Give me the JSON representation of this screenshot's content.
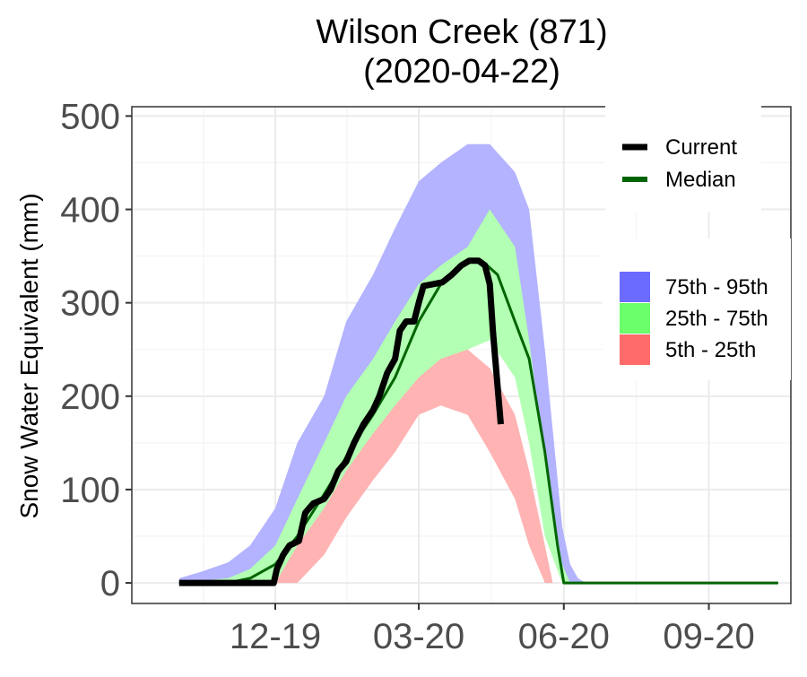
{
  "chart_data": {
    "type": "area",
    "title": "Wilson Creek (871)",
    "subtitle": "(2020-04-22)",
    "ylabel": "Snow Water Equivalent (mm)",
    "xlabel": "",
    "ylim": [
      -22,
      510
    ],
    "xlim": [
      "2019-09-01",
      "2020-10-23"
    ],
    "y_ticks": [
      0,
      100,
      200,
      300,
      400,
      500
    ],
    "x_ticks": [
      {
        "date": "2019-12-01",
        "label": "12-19"
      },
      {
        "date": "2020-03-01",
        "label": "03-20"
      },
      {
        "date": "2020-06-01",
        "label": "06-20"
      },
      {
        "date": "2020-09-01",
        "label": "09-20"
      }
    ],
    "grid": true,
    "legend_lines": [
      {
        "label": "Current",
        "color": "#000000"
      },
      {
        "label": "Median",
        "color": "#006400"
      }
    ],
    "legend_bands": [
      {
        "label": "75th - 95th",
        "color": "#6b6bff"
      },
      {
        "label": "25th - 75th",
        "color": "#6bff6b"
      },
      {
        "label": "5th - 25th",
        "color": "#ff6b6b"
      }
    ],
    "bands": [
      {
        "name": "75th - 95th",
        "color": "#b3b3ff",
        "points": [
          [
            "2019-10-01",
            0,
            5
          ],
          [
            "2019-10-15",
            0,
            12
          ],
          [
            "2019-11-01",
            0,
            22
          ],
          [
            "2019-11-15",
            0,
            40
          ],
          [
            "2019-12-01",
            5,
            80
          ],
          [
            "2019-12-15",
            20,
            150
          ],
          [
            "2020-01-01",
            60,
            200
          ],
          [
            "2020-01-15",
            120,
            280
          ],
          [
            "2020-02-01",
            160,
            330
          ],
          [
            "2020-02-15",
            200,
            380
          ],
          [
            "2020-03-01",
            260,
            430
          ],
          [
            "2020-03-15",
            300,
            450
          ],
          [
            "2020-04-01",
            330,
            470
          ],
          [
            "2020-04-15",
            370,
            470
          ],
          [
            "2020-05-01",
            300,
            440
          ],
          [
            "2020-05-10",
            200,
            400
          ],
          [
            "2020-05-20",
            100,
            250
          ],
          [
            "2020-05-31",
            10,
            60
          ],
          [
            "2020-06-05",
            0,
            20
          ],
          [
            "2020-06-10",
            0,
            5
          ],
          [
            "2020-06-15",
            0,
            0
          ]
        ]
      },
      {
        "name": "25th - 75th",
        "color": "#b3ffb3",
        "points": [
          [
            "2019-10-01",
            0,
            0
          ],
          [
            "2019-11-01",
            0,
            5
          ],
          [
            "2019-11-15",
            0,
            15
          ],
          [
            "2019-12-01",
            0,
            40
          ],
          [
            "2019-12-15",
            10,
            90
          ],
          [
            "2020-01-01",
            40,
            150
          ],
          [
            "2020-01-15",
            80,
            200
          ],
          [
            "2020-02-01",
            120,
            240
          ],
          [
            "2020-02-15",
            160,
            280
          ],
          [
            "2020-03-01",
            200,
            320
          ],
          [
            "2020-03-15",
            230,
            340
          ],
          [
            "2020-04-01",
            250,
            360
          ],
          [
            "2020-04-15",
            260,
            400
          ],
          [
            "2020-05-01",
            220,
            360
          ],
          [
            "2020-05-10",
            150,
            260
          ],
          [
            "2020-05-20",
            50,
            130
          ],
          [
            "2020-05-31",
            0,
            20
          ],
          [
            "2020-06-05",
            0,
            0
          ]
        ]
      },
      {
        "name": "5th - 25th",
        "color": "#ffb3b3",
        "points": [
          [
            "2019-12-01",
            0,
            0
          ],
          [
            "2019-12-15",
            0,
            40
          ],
          [
            "2020-01-01",
            30,
            80
          ],
          [
            "2020-01-15",
            70,
            120
          ],
          [
            "2020-02-01",
            110,
            160
          ],
          [
            "2020-02-15",
            140,
            190
          ],
          [
            "2020-03-01",
            180,
            220
          ],
          [
            "2020-03-15",
            190,
            240
          ],
          [
            "2020-04-01",
            180,
            250
          ],
          [
            "2020-04-15",
            140,
            230
          ],
          [
            "2020-05-01",
            90,
            180
          ],
          [
            "2020-05-10",
            40,
            120
          ],
          [
            "2020-05-20",
            0,
            40
          ],
          [
            "2020-05-25",
            0,
            0
          ]
        ]
      }
    ],
    "series": [
      {
        "name": "Median",
        "color": "#006400",
        "points": [
          [
            "2019-10-01",
            0
          ],
          [
            "2019-11-01",
            0
          ],
          [
            "2019-11-15",
            5
          ],
          [
            "2019-12-01",
            20
          ],
          [
            "2019-12-15",
            50
          ],
          [
            "2020-01-01",
            95
          ],
          [
            "2020-01-10",
            120
          ],
          [
            "2020-01-20",
            150
          ],
          [
            "2020-02-01",
            180
          ],
          [
            "2020-02-15",
            220
          ],
          [
            "2020-03-01",
            280
          ],
          [
            "2020-03-15",
            320
          ],
          [
            "2020-04-01",
            345
          ],
          [
            "2020-04-10",
            345
          ],
          [
            "2020-04-20",
            330
          ],
          [
            "2020-05-01",
            280
          ],
          [
            "2020-05-10",
            240
          ],
          [
            "2020-05-20",
            140
          ],
          [
            "2020-05-28",
            40
          ],
          [
            "2020-06-01",
            0
          ],
          [
            "2020-10-15",
            0
          ]
        ]
      },
      {
        "name": "Current",
        "color": "#000000",
        "points": [
          [
            "2019-10-01",
            0
          ],
          [
            "2019-10-20",
            0
          ],
          [
            "2019-11-01",
            0
          ],
          [
            "2019-11-15",
            0
          ],
          [
            "2019-11-30",
            0
          ],
          [
            "2019-12-02",
            15
          ],
          [
            "2019-12-06",
            30
          ],
          [
            "2019-12-10",
            40
          ],
          [
            "2019-12-16",
            45
          ],
          [
            "2019-12-20",
            75
          ],
          [
            "2019-12-25",
            85
          ],
          [
            "2020-01-01",
            90
          ],
          [
            "2020-01-05",
            100
          ],
          [
            "2020-01-10",
            120
          ],
          [
            "2020-01-15",
            130
          ],
          [
            "2020-01-20",
            150
          ],
          [
            "2020-01-26",
            170
          ],
          [
            "2020-02-01",
            185
          ],
          [
            "2020-02-05",
            200
          ],
          [
            "2020-02-10",
            225
          ],
          [
            "2020-02-15",
            240
          ],
          [
            "2020-02-18",
            270
          ],
          [
            "2020-02-22",
            280
          ],
          [
            "2020-02-27",
            280
          ],
          [
            "2020-03-01",
            300
          ],
          [
            "2020-03-04",
            318
          ],
          [
            "2020-03-10",
            320
          ],
          [
            "2020-03-16",
            322
          ],
          [
            "2020-03-22",
            330
          ],
          [
            "2020-03-28",
            340
          ],
          [
            "2020-04-02",
            345
          ],
          [
            "2020-04-08",
            345
          ],
          [
            "2020-04-12",
            340
          ],
          [
            "2020-04-15",
            320
          ],
          [
            "2020-04-17",
            270
          ],
          [
            "2020-04-19",
            230
          ],
          [
            "2020-04-22",
            170
          ]
        ]
      }
    ]
  }
}
